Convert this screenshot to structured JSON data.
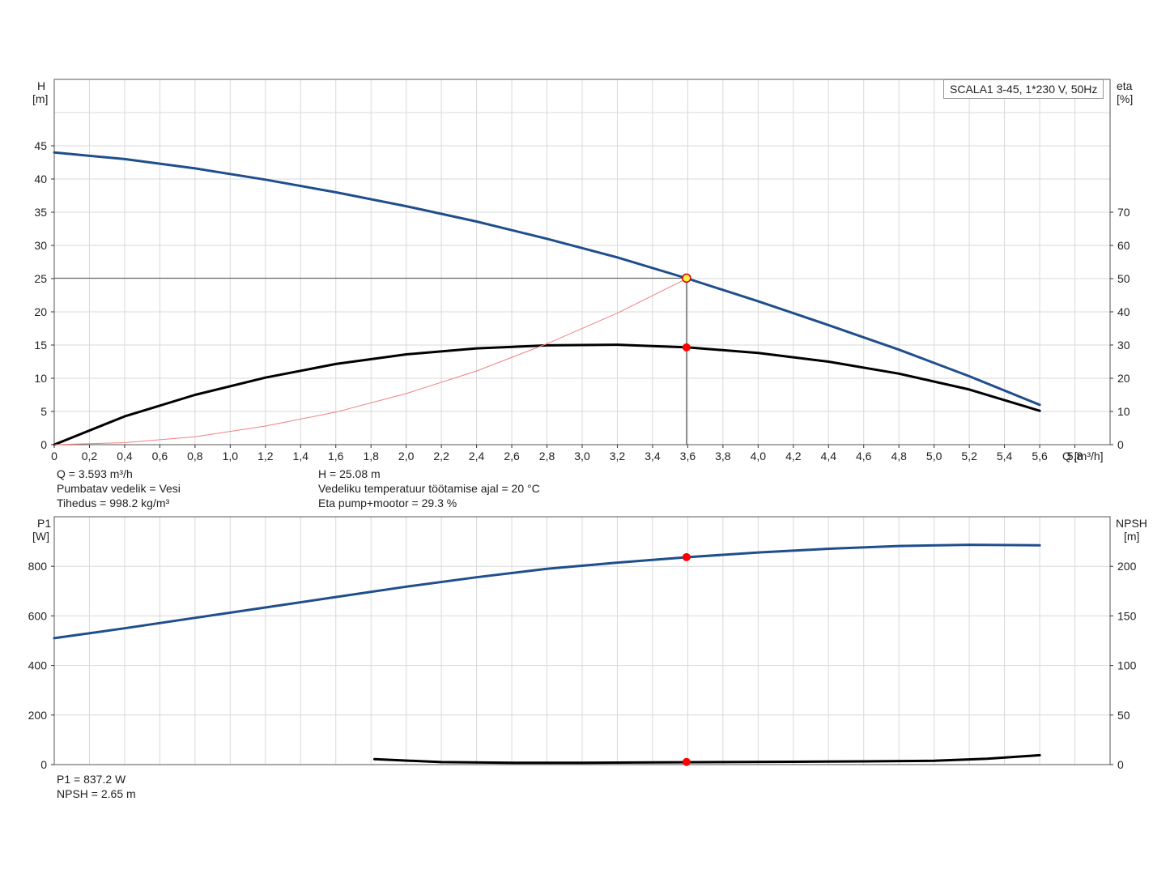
{
  "chart_data": [
    {
      "type": "line",
      "title": "SCALA1 3-45, 1*230 V, 50Hz",
      "xlabel": "Q [m³/h]",
      "x_axis": {
        "label": "Q",
        "unit": "[m³/h]",
        "range": [
          0,
          6.0
        ],
        "ticks": [
          "0",
          "0,2",
          "0,4",
          "0,6",
          "0,8",
          "1,0",
          "1,2",
          "1,4",
          "1,6",
          "1,8",
          "2,0",
          "2,2",
          "2,4",
          "2,6",
          "2,8",
          "3,0",
          "3,2",
          "3,4",
          "3,6",
          "3,8",
          "4,0",
          "4,2",
          "4,4",
          "4,6",
          "4,8",
          "5,0",
          "5,2",
          "5,4",
          "5,6",
          "5,8"
        ]
      },
      "y_left": {
        "label": "H",
        "unit": "[m]",
        "range": [
          0,
          55
        ],
        "ticks": [
          "0",
          "5",
          "10",
          "15",
          "20",
          "25",
          "30",
          "35",
          "40",
          "45"
        ]
      },
      "y_right": {
        "label": "eta",
        "unit": "[%]",
        "range": [
          0,
          110
        ],
        "ticks": [
          "0",
          "10",
          "20",
          "30",
          "40",
          "50",
          "60",
          "70"
        ]
      },
      "grid": true,
      "series": [
        {
          "axis": "left",
          "color": "#1f4e8c",
          "x": [
            0,
            0.4,
            0.8,
            1.2,
            1.6,
            2.0,
            2.4,
            2.8,
            3.2,
            3.6,
            4.0,
            4.4,
            4.8,
            5.2,
            5.6
          ],
          "values": [
            44.0,
            43.0,
            41.6,
            39.9,
            38.0,
            35.9,
            33.6,
            31.0,
            28.2,
            25.0,
            21.6,
            18.0,
            14.3,
            10.3,
            6.0
          ]
        },
        {
          "axis": "right",
          "color": "#000000",
          "x": [
            0,
            0.4,
            0.8,
            1.2,
            1.6,
            2.0,
            2.4,
            2.8,
            3.2,
            3.6,
            4.0,
            4.4,
            4.8,
            5.2,
            5.6
          ],
          "values": [
            0,
            8.5,
            15.0,
            20.2,
            24.3,
            27.2,
            29.0,
            29.9,
            30.1,
            29.3,
            27.6,
            25.0,
            21.4,
            16.6,
            10.2
          ]
        },
        {
          "axis": "left",
          "color": "#f08080",
          "x": [
            0,
            0.4,
            0.8,
            1.2,
            1.6,
            2.0,
            2.4,
            2.8,
            3.2,
            3.6
          ],
          "values": [
            0,
            0.3,
            1.2,
            2.8,
            4.9,
            7.7,
            11.1,
            15.2,
            19.8,
            25.08
          ]
        }
      ],
      "operating_point": {
        "Q": 3.593,
        "H": 25.08,
        "eta": 29.3
      }
    },
    {
      "type": "line",
      "x_axis": {
        "range": [
          0,
          6.0
        ]
      },
      "y_left": {
        "label": "P1",
        "unit": "[W]",
        "range": [
          0,
          1000
        ],
        "ticks": [
          "0",
          "200",
          "400",
          "600",
          "800"
        ]
      },
      "y_right": {
        "label": "NPSH",
        "unit": "[m]",
        "range": [
          0,
          250
        ],
        "ticks": [
          "0",
          "50",
          "100",
          "150",
          "200"
        ]
      },
      "grid": true,
      "series": [
        {
          "axis": "left",
          "color": "#1f4e8c",
          "x": [
            0,
            0.4,
            0.8,
            1.2,
            1.6,
            2.0,
            2.4,
            2.8,
            3.2,
            3.6,
            4.0,
            4.4,
            4.8,
            5.2,
            5.6
          ],
          "values": [
            510,
            550,
            592,
            634,
            676,
            718,
            756,
            790,
            815,
            837,
            856,
            871,
            882,
            887,
            885
          ]
        },
        {
          "axis": "right",
          "color": "#000000",
          "x": [
            1.82,
            2.2,
            2.6,
            3.0,
            3.4,
            3.8,
            4.2,
            4.6,
            5.0,
            5.3,
            5.6
          ],
          "values": [
            5.5,
            2.5,
            1.9,
            1.9,
            2.2,
            2.5,
            2.9,
            3.3,
            3.8,
            6.0,
            9.5
          ]
        }
      ],
      "operating_point": {
        "Q": 3.593,
        "P1": 837.2,
        "NPSH": 2.65
      }
    }
  ],
  "info_top": {
    "q": "Q = 3.593 m³/h",
    "medium": "Pumbatav vedelik = Vesi",
    "density": "Tihedus = 998.2 kg/m³",
    "h": "H = 25.08 m",
    "temp": "Vedeliku temperatuur töötamise ajal = 20 °C",
    "eta": "Eta pump+mootor = 29.3 %"
  },
  "info_bottom": {
    "p1": "P1 = 837.2 W",
    "npsh": "NPSH = 2.65 m"
  },
  "colors": {
    "blue_curve": "#1f4e8c",
    "black_curve": "#000000",
    "system_curve": "#f08080",
    "marker_red": "#ff0000",
    "marker_yellow": "#ffee44",
    "grid": "#d9d9d9"
  }
}
